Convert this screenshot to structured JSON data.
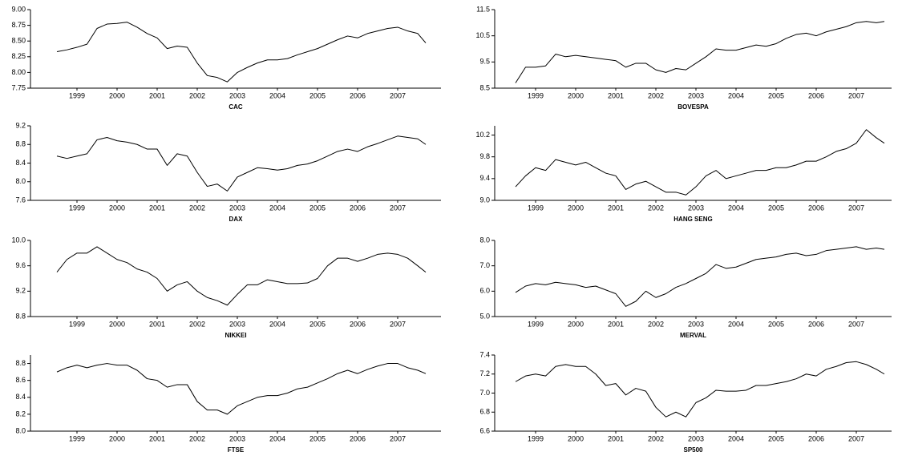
{
  "chart_data": [
    {
      "type": "line",
      "title": "CAC",
      "color": "#000000",
      "xlim": [
        1998.34,
        2008.58
      ],
      "ylim": [
        7.75,
        9.0
      ],
      "xticks": [
        {
          "value": 1999.5,
          "label": "1999"
        },
        {
          "value": 2000.5,
          "label": "2000"
        },
        {
          "value": 2001.5,
          "label": "2001"
        },
        {
          "value": 2002.5,
          "label": "2002"
        },
        {
          "value": 2003.5,
          "label": "2003"
        },
        {
          "value": 2004.5,
          "label": "2004"
        },
        {
          "value": 2005.5,
          "label": "2005"
        },
        {
          "value": 2006.5,
          "label": "2006"
        },
        {
          "value": 2007.5,
          "label": "2007"
        }
      ],
      "yticks": [
        7.75,
        {
          "value": 8.0,
          "label": "8.00"
        },
        8.25,
        {
          "value": 8.5,
          "label": "8.50"
        },
        8.75,
        {
          "value": 9.0,
          "label": "9.00"
        }
      ],
      "x": [
        1999,
        1999.25,
        1999.5,
        1999.75,
        2000,
        2000.25,
        2000.5,
        2000.75,
        2001,
        2001.25,
        2001.5,
        2001.75,
        2002,
        2002.25,
        2002.5,
        2002.75,
        2003,
        2003.25,
        2003.5,
        2003.75,
        2004,
        2004.25,
        2004.5,
        2004.75,
        2005,
        2005.25,
        2005.5,
        2005.75,
        2006,
        2006.25,
        2006.5,
        2006.75,
        2007,
        2007.25,
        2007.5,
        2007.75,
        2008,
        2008.2
      ],
      "values": [
        8.33,
        8.36,
        8.4,
        8.45,
        8.7,
        8.77,
        8.78,
        8.8,
        8.72,
        8.62,
        8.55,
        8.38,
        8.42,
        8.4,
        8.15,
        7.95,
        7.92,
        7.85,
        8.0,
        8.08,
        8.15,
        8.2,
        8.2,
        8.22,
        8.28,
        8.33,
        8.38,
        8.45,
        8.52,
        8.58,
        8.55,
        8.62,
        8.66,
        8.7,
        8.72,
        8.66,
        8.62,
        8.47
      ]
    },
    {
      "type": "line",
      "title": "BOVESPA",
      "color": "#000000",
      "xlim": [
        1998.48,
        2008.38
      ],
      "ylim": [
        8.5,
        11.5
      ],
      "xticks": [
        {
          "value": 1999.5,
          "label": "1999"
        },
        {
          "value": 2000.5,
          "label": "2000"
        },
        {
          "value": 2001.5,
          "label": "2001"
        },
        {
          "value": 2002.5,
          "label": "2002"
        },
        {
          "value": 2003.5,
          "label": "2003"
        },
        {
          "value": 2004.5,
          "label": "2004"
        },
        {
          "value": 2005.5,
          "label": "2005"
        },
        {
          "value": 2006.5,
          "label": "2006"
        },
        {
          "value": 2007.5,
          "label": "2007"
        }
      ],
      "yticks": [
        8.5,
        9.5,
        10.5,
        11.5
      ],
      "x": [
        1999,
        1999.25,
        1999.5,
        1999.75,
        2000,
        2000.25,
        2000.5,
        2000.75,
        2001,
        2001.25,
        2001.5,
        2001.75,
        2002,
        2002.25,
        2002.5,
        2002.75,
        2003,
        2003.25,
        2003.5,
        2003.75,
        2004,
        2004.25,
        2004.5,
        2004.75,
        2005,
        2005.25,
        2005.5,
        2005.75,
        2006,
        2006.25,
        2006.5,
        2006.75,
        2007,
        2007.25,
        2007.5,
        2007.75,
        2008,
        2008.2
      ],
      "values": [
        8.7,
        9.3,
        9.3,
        9.35,
        9.8,
        9.7,
        9.75,
        9.7,
        9.65,
        9.6,
        9.55,
        9.3,
        9.45,
        9.45,
        9.2,
        9.1,
        9.25,
        9.2,
        9.45,
        9.7,
        10.0,
        9.95,
        9.95,
        10.05,
        10.15,
        10.1,
        10.2,
        10.4,
        10.55,
        10.6,
        10.5,
        10.65,
        10.75,
        10.85,
        11.0,
        11.05,
        11.0,
        11.05
      ]
    },
    {
      "type": "line",
      "title": "DAX",
      "color": "#000000",
      "xlim": [
        1998.34,
        2008.58
      ],
      "ylim": [
        7.6,
        9.2
      ],
      "xticks": [
        {
          "value": 1999.5,
          "label": "1999"
        },
        {
          "value": 2000.5,
          "label": "2000"
        },
        {
          "value": 2001.5,
          "label": "2001"
        },
        {
          "value": 2002.5,
          "label": "2002"
        },
        {
          "value": 2003.5,
          "label": "2003"
        },
        {
          "value": 2004.5,
          "label": "2004"
        },
        {
          "value": 2005.5,
          "label": "2005"
        },
        {
          "value": 2006.5,
          "label": "2006"
        },
        {
          "value": 2007.5,
          "label": "2007"
        }
      ],
      "yticks": [
        7.6,
        {
          "value": 8.0,
          "label": "8.0"
        },
        8.4,
        8.8,
        9.2
      ],
      "x": [
        1999,
        1999.25,
        1999.5,
        1999.75,
        2000,
        2000.25,
        2000.5,
        2000.75,
        2001,
        2001.25,
        2001.5,
        2001.75,
        2002,
        2002.25,
        2002.5,
        2002.75,
        2003,
        2003.25,
        2003.5,
        2003.75,
        2004,
        2004.25,
        2004.5,
        2004.75,
        2005,
        2005.25,
        2005.5,
        2005.75,
        2006,
        2006.25,
        2006.5,
        2006.75,
        2007,
        2007.25,
        2007.5,
        2007.75,
        2008,
        2008.2
      ],
      "values": [
        8.55,
        8.5,
        8.55,
        8.6,
        8.9,
        8.95,
        8.88,
        8.85,
        8.8,
        8.7,
        8.7,
        8.35,
        8.6,
        8.55,
        8.2,
        7.9,
        7.95,
        7.8,
        8.1,
        8.2,
        8.3,
        8.28,
        8.25,
        8.28,
        8.35,
        8.38,
        8.45,
        8.55,
        8.65,
        8.7,
        8.65,
        8.75,
        8.82,
        8.9,
        8.98,
        8.95,
        8.92,
        8.8
      ]
    },
    {
      "type": "line",
      "title": "HANG SENG",
      "color": "#000000",
      "xlim": [
        1998.48,
        2008.38
      ],
      "ylim": [
        9.0,
        10.37
      ],
      "xticks": [
        {
          "value": 1999.5,
          "label": "1999"
        },
        {
          "value": 2000.5,
          "label": "2000"
        },
        {
          "value": 2001.5,
          "label": "2001"
        },
        {
          "value": 2002.5,
          "label": "2002"
        },
        {
          "value": 2003.5,
          "label": "2003"
        },
        {
          "value": 2004.5,
          "label": "2004"
        },
        {
          "value": 2005.5,
          "label": "2005"
        },
        {
          "value": 2006.5,
          "label": "2006"
        },
        {
          "value": 2007.5,
          "label": "2007"
        }
      ],
      "yticks": [
        {
          "value": 9.0,
          "label": "9.0"
        },
        9.4,
        9.8,
        10.2
      ],
      "x": [
        1999,
        1999.25,
        1999.5,
        1999.75,
        2000,
        2000.25,
        2000.5,
        2000.75,
        2001,
        2001.25,
        2001.5,
        2001.75,
        2002,
        2002.25,
        2002.5,
        2002.75,
        2003,
        2003.25,
        2003.5,
        2003.75,
        2004,
        2004.25,
        2004.5,
        2004.75,
        2005,
        2005.25,
        2005.5,
        2005.75,
        2006,
        2006.25,
        2006.5,
        2006.75,
        2007,
        2007.25,
        2007.5,
        2007.75,
        2008,
        2008.2
      ],
      "values": [
        9.25,
        9.45,
        9.6,
        9.55,
        9.75,
        9.7,
        9.65,
        9.7,
        9.6,
        9.5,
        9.45,
        9.2,
        9.3,
        9.35,
        9.25,
        9.15,
        9.15,
        9.1,
        9.25,
        9.45,
        9.55,
        9.4,
        9.45,
        9.5,
        9.55,
        9.55,
        9.6,
        9.6,
        9.65,
        9.72,
        9.72,
        9.8,
        9.9,
        9.95,
        10.05,
        10.3,
        10.15,
        10.05
      ]
    },
    {
      "type": "line",
      "title": "NIKKEI",
      "color": "#000000",
      "xlim": [
        1998.34,
        2008.58
      ],
      "ylim": [
        8.8,
        10.0
      ],
      "xticks": [
        {
          "value": 1999.5,
          "label": "1999"
        },
        {
          "value": 2000.5,
          "label": "2000"
        },
        {
          "value": 2001.5,
          "label": "2001"
        },
        {
          "value": 2002.5,
          "label": "2002"
        },
        {
          "value": 2003.5,
          "label": "2003"
        },
        {
          "value": 2004.5,
          "label": "2004"
        },
        {
          "value": 2005.5,
          "label": "2005"
        },
        {
          "value": 2006.5,
          "label": "2006"
        },
        {
          "value": 2007.5,
          "label": "2007"
        }
      ],
      "yticks": [
        8.8,
        9.2,
        9.6,
        {
          "value": 10.0,
          "label": "10.0"
        }
      ],
      "x": [
        1999,
        1999.25,
        1999.5,
        1999.75,
        2000,
        2000.25,
        2000.5,
        2000.75,
        2001,
        2001.25,
        2001.5,
        2001.75,
        2002,
        2002.25,
        2002.5,
        2002.75,
        2003,
        2003.25,
        2003.5,
        2003.75,
        2004,
        2004.25,
        2004.5,
        2004.75,
        2005,
        2005.25,
        2005.5,
        2005.75,
        2006,
        2006.25,
        2006.5,
        2006.75,
        2007,
        2007.25,
        2007.5,
        2007.75,
        2008,
        2008.2
      ],
      "values": [
        9.5,
        9.7,
        9.8,
        9.8,
        9.9,
        9.8,
        9.7,
        9.65,
        9.55,
        9.5,
        9.4,
        9.2,
        9.3,
        9.35,
        9.2,
        9.1,
        9.05,
        8.98,
        9.15,
        9.3,
        9.3,
        9.38,
        9.35,
        9.32,
        9.32,
        9.33,
        9.4,
        9.6,
        9.72,
        9.72,
        9.67,
        9.72,
        9.78,
        9.8,
        9.78,
        9.72,
        9.6,
        9.5
      ]
    },
    {
      "type": "line",
      "title": "MERVAL",
      "color": "#000000",
      "xlim": [
        1998.48,
        2008.38
      ],
      "ylim": [
        5.0,
        8.0
      ],
      "xticks": [
        {
          "value": 1999.5,
          "label": "1999"
        },
        {
          "value": 2000.5,
          "label": "2000"
        },
        {
          "value": 2001.5,
          "label": "2001"
        },
        {
          "value": 2002.5,
          "label": "2002"
        },
        {
          "value": 2003.5,
          "label": "2003"
        },
        {
          "value": 2004.5,
          "label": "2004"
        },
        {
          "value": 2005.5,
          "label": "2005"
        },
        {
          "value": 2006.5,
          "label": "2006"
        },
        {
          "value": 2007.5,
          "label": "2007"
        }
      ],
      "yticks": [
        {
          "value": 5.0,
          "label": "5.0"
        },
        {
          "value": 6.0,
          "label": "6.0"
        },
        {
          "value": 7.0,
          "label": "7.0"
        },
        {
          "value": 8.0,
          "label": "8.0"
        }
      ],
      "x": [
        1999,
        1999.25,
        1999.5,
        1999.75,
        2000,
        2000.25,
        2000.5,
        2000.75,
        2001,
        2001.25,
        2001.5,
        2001.75,
        2002,
        2002.25,
        2002.5,
        2002.75,
        2003,
        2003.25,
        2003.5,
        2003.75,
        2004,
        2004.25,
        2004.5,
        2004.75,
        2005,
        2005.25,
        2005.5,
        2005.75,
        2006,
        2006.25,
        2006.5,
        2006.75,
        2007,
        2007.25,
        2007.5,
        2007.75,
        2008,
        2008.2
      ],
      "values": [
        5.95,
        6.2,
        6.3,
        6.25,
        6.35,
        6.3,
        6.25,
        6.15,
        6.2,
        6.05,
        5.9,
        5.4,
        5.6,
        6.0,
        5.75,
        5.9,
        6.15,
        6.3,
        6.5,
        6.7,
        7.05,
        6.9,
        6.95,
        7.1,
        7.25,
        7.3,
        7.35,
        7.45,
        7.5,
        7.4,
        7.45,
        7.6,
        7.65,
        7.7,
        7.75,
        7.65,
        7.7,
        7.65
      ]
    },
    {
      "type": "line",
      "title": "FTSE",
      "color": "#000000",
      "xlim": [
        1998.34,
        2008.58
      ],
      "ylim": [
        8.0,
        8.9
      ],
      "xticks": [
        {
          "value": 1999.5,
          "label": "1999"
        },
        {
          "value": 2000.5,
          "label": "2000"
        },
        {
          "value": 2001.5,
          "label": "2001"
        },
        {
          "value": 2002.5,
          "label": "2002"
        },
        {
          "value": 2003.5,
          "label": "2003"
        },
        {
          "value": 2004.5,
          "label": "2004"
        },
        {
          "value": 2005.5,
          "label": "2005"
        },
        {
          "value": 2006.5,
          "label": "2006"
        },
        {
          "value": 2007.5,
          "label": "2007"
        }
      ],
      "yticks": [
        {
          "value": 8.0,
          "label": "8.0"
        },
        8.2,
        8.4,
        8.6,
        8.8
      ],
      "x": [
        1999,
        1999.25,
        1999.5,
        1999.75,
        2000,
        2000.25,
        2000.5,
        2000.75,
        2001,
        2001.25,
        2001.5,
        2001.75,
        2002,
        2002.25,
        2002.5,
        2002.75,
        2003,
        2003.25,
        2003.5,
        2003.75,
        2004,
        2004.25,
        2004.5,
        2004.75,
        2005,
        2005.25,
        2005.5,
        2005.75,
        2006,
        2006.25,
        2006.5,
        2006.75,
        2007,
        2007.25,
        2007.5,
        2007.75,
        2008,
        2008.2
      ],
      "values": [
        8.7,
        8.75,
        8.78,
        8.75,
        8.78,
        8.8,
        8.78,
        8.78,
        8.72,
        8.62,
        8.6,
        8.52,
        8.55,
        8.55,
        8.35,
        8.25,
        8.25,
        8.2,
        8.3,
        8.35,
        8.4,
        8.42,
        8.42,
        8.45,
        8.5,
        8.52,
        8.57,
        8.62,
        8.68,
        8.72,
        8.68,
        8.73,
        8.77,
        8.8,
        8.8,
        8.75,
        8.72,
        8.68
      ]
    },
    {
      "type": "line",
      "title": "SP500",
      "color": "#000000",
      "xlim": [
        1998.48,
        2008.38
      ],
      "ylim": [
        6.6,
        7.4
      ],
      "xticks": [
        {
          "value": 1999.5,
          "label": "1999"
        },
        {
          "value": 2000.5,
          "label": "2000"
        },
        {
          "value": 2001.5,
          "label": "2001"
        },
        {
          "value": 2002.5,
          "label": "2002"
        },
        {
          "value": 2003.5,
          "label": "2003"
        },
        {
          "value": 2004.5,
          "label": "2004"
        },
        {
          "value": 2005.5,
          "label": "2005"
        },
        {
          "value": 2006.5,
          "label": "2006"
        },
        {
          "value": 2007.5,
          "label": "2007"
        }
      ],
      "yticks": [
        6.6,
        6.8,
        {
          "value": 7.0,
          "label": "7.0"
        },
        7.2,
        7.4
      ],
      "x": [
        1999,
        1999.25,
        1999.5,
        1999.75,
        2000,
        2000.25,
        2000.5,
        2000.75,
        2001,
        2001.25,
        2001.5,
        2001.75,
        2002,
        2002.25,
        2002.5,
        2002.75,
        2003,
        2003.25,
        2003.5,
        2003.75,
        2004,
        2004.25,
        2004.5,
        2004.75,
        2005,
        2005.25,
        2005.5,
        2005.75,
        2006,
        2006.25,
        2006.5,
        2006.75,
        2007,
        2007.25,
        2007.5,
        2007.75,
        2008,
        2008.2
      ],
      "values": [
        7.12,
        7.18,
        7.2,
        7.18,
        7.28,
        7.3,
        7.28,
        7.28,
        7.2,
        7.08,
        7.1,
        6.98,
        7.05,
        7.02,
        6.85,
        6.75,
        6.8,
        6.75,
        6.9,
        6.95,
        7.03,
        7.02,
        7.02,
        7.03,
        7.08,
        7.08,
        7.1,
        7.12,
        7.15,
        7.2,
        7.18,
        7.25,
        7.28,
        7.32,
        7.33,
        7.3,
        7.25,
        7.2
      ]
    }
  ]
}
